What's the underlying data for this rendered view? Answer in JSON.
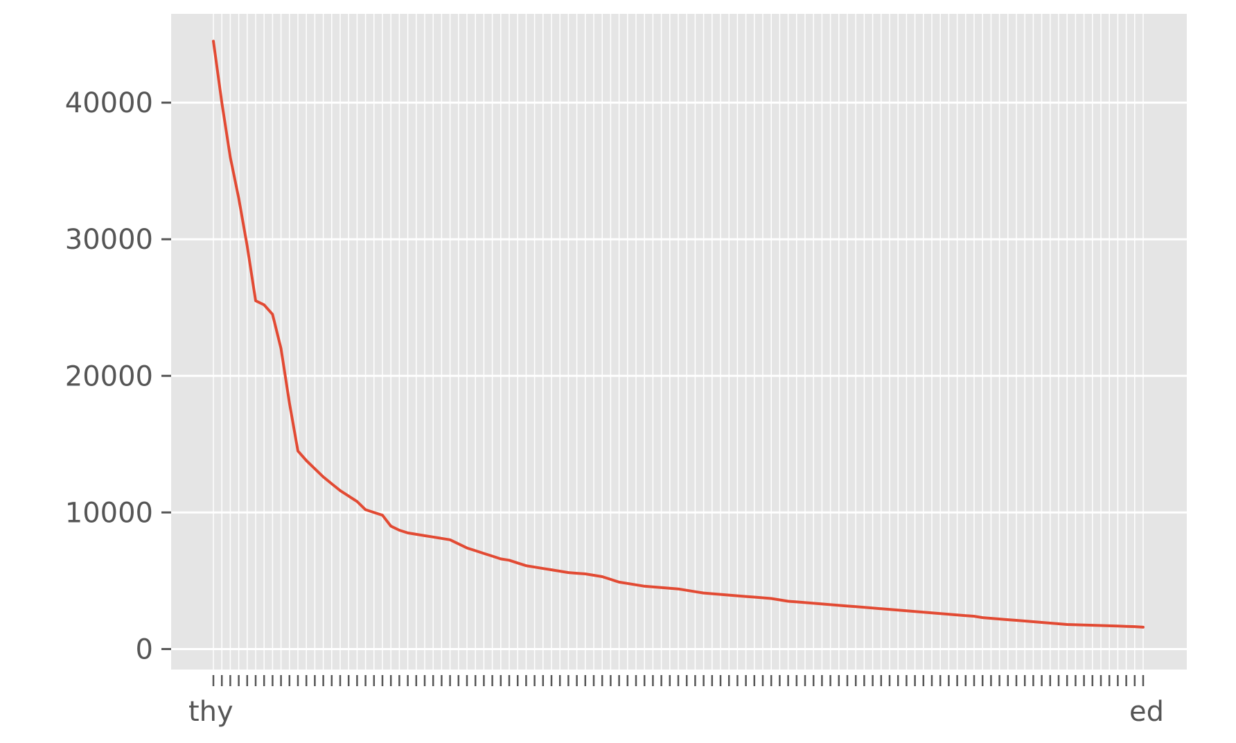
{
  "chart_data": {
    "type": "line",
    "title": "",
    "xlabel": "",
    "ylabel": "",
    "ylim": [
      -1500,
      46500
    ],
    "y_ticks": [
      0,
      10000,
      20000,
      30000,
      40000
    ],
    "y_tick_labels": [
      "0",
      "10000",
      "20000",
      "30000",
      "40000"
    ],
    "x_tick_labels_visible_start": "thy",
    "x_tick_labels_visible_end": "ed",
    "point_count": 111,
    "grid": true,
    "background": "#e5e5e5",
    "grid_color": "#ffffff",
    "line_color": "#e24a33",
    "values": [
      44500,
      40000,
      36000,
      33000,
      29500,
      25500,
      25200,
      24500,
      22000,
      18000,
      14500,
      13800,
      13200,
      12600,
      12100,
      11600,
      11200,
      10800,
      10200,
      10000,
      9800,
      9000,
      8700,
      8500,
      8400,
      8300,
      8200,
      8100,
      8000,
      7700,
      7400,
      7200,
      7000,
      6800,
      6600,
      6500,
      6300,
      6100,
      6000,
      5900,
      5800,
      5700,
      5600,
      5550,
      5500,
      5400,
      5300,
      5100,
      4900,
      4800,
      4700,
      4600,
      4550,
      4500,
      4450,
      4400,
      4300,
      4200,
      4100,
      4050,
      4000,
      3950,
      3900,
      3850,
      3800,
      3750,
      3700,
      3600,
      3500,
      3450,
      3400,
      3350,
      3300,
      3250,
      3200,
      3150,
      3100,
      3050,
      3000,
      2950,
      2900,
      2850,
      2800,
      2750,
      2700,
      2650,
      2600,
      2550,
      2500,
      2450,
      2400,
      2300,
      2250,
      2200,
      2150,
      2100,
      2050,
      2000,
      1950,
      1900,
      1850,
      1800,
      1780,
      1760,
      1740,
      1720,
      1700,
      1680,
      1660,
      1640,
      1600
    ]
  }
}
